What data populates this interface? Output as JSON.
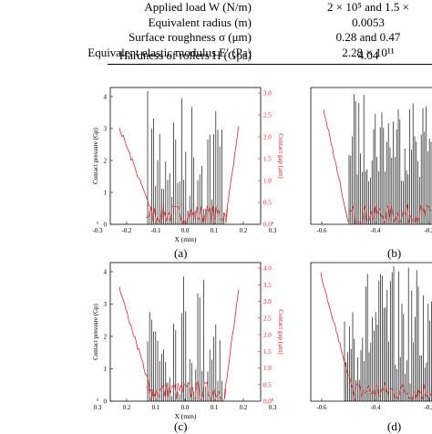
{
  "table": {
    "rows": [
      {
        "label": "Applied load W (N/m)",
        "value": "2 × 10⁵ and 1.5 ×"
      },
      {
        "label": "Equivalent radius (m)",
        "value": "0.0053"
      },
      {
        "label": "Surface roughness σ (μm)",
        "value": "0.28 and 0.47"
      },
      {
        "label": "Equivalent elastic modulus E′ (Pa)",
        "value": "2.28 × 10¹¹"
      },
      {
        "label": "Hardness of rollers H (Gpa)",
        "value": "4.04"
      }
    ]
  },
  "panels": [
    {
      "id": "a",
      "caption": "(a)",
      "xlabel": "X (mm)",
      "ylabel_left": "Contact pressure (Gp)",
      "ylabel_right": "Contact gap (μm)",
      "x_ticks": [
        "-0.3",
        "-0.2",
        "-0.1",
        "0.0",
        "0.1",
        "0.2",
        "0.3"
      ],
      "y_left_ticks": [
        "0",
        "1",
        "2",
        "3",
        "4"
      ],
      "y_right_ticks": [
        "0.0",
        "0.5",
        "1.0",
        "1.5",
        "2.0",
        "2.5",
        "3.0"
      ]
    },
    {
      "id": "b",
      "caption": "(b)",
      "x_ticks": [
        "-0.6",
        "-0.4",
        "-0.2"
      ]
    },
    {
      "id": "c",
      "caption": "(c)",
      "xlabel": "X (mm)",
      "ylabel_left": "Contact pressure (Gp)",
      "ylabel_right": "Contact gap (μm)",
      "x_ticks": [
        "0.3",
        "0.2",
        "0.1",
        "0.0",
        "0.1",
        "0.2",
        "0.3"
      ],
      "y_left_ticks": [
        "0",
        "1",
        "2",
        "3",
        "4"
      ],
      "y_right_ticks": [
        "0.0",
        "0.5",
        "1.0",
        "1.5",
        "2.0",
        "2.5",
        "3.0",
        "3.5",
        "4.0"
      ]
    },
    {
      "id": "d",
      "caption": "(d)",
      "x_ticks": [
        "-0.6",
        "-0.4",
        "-0.2"
      ]
    }
  ],
  "colors": {
    "pressure": "#111111",
    "gap": "#e0262b"
  }
}
